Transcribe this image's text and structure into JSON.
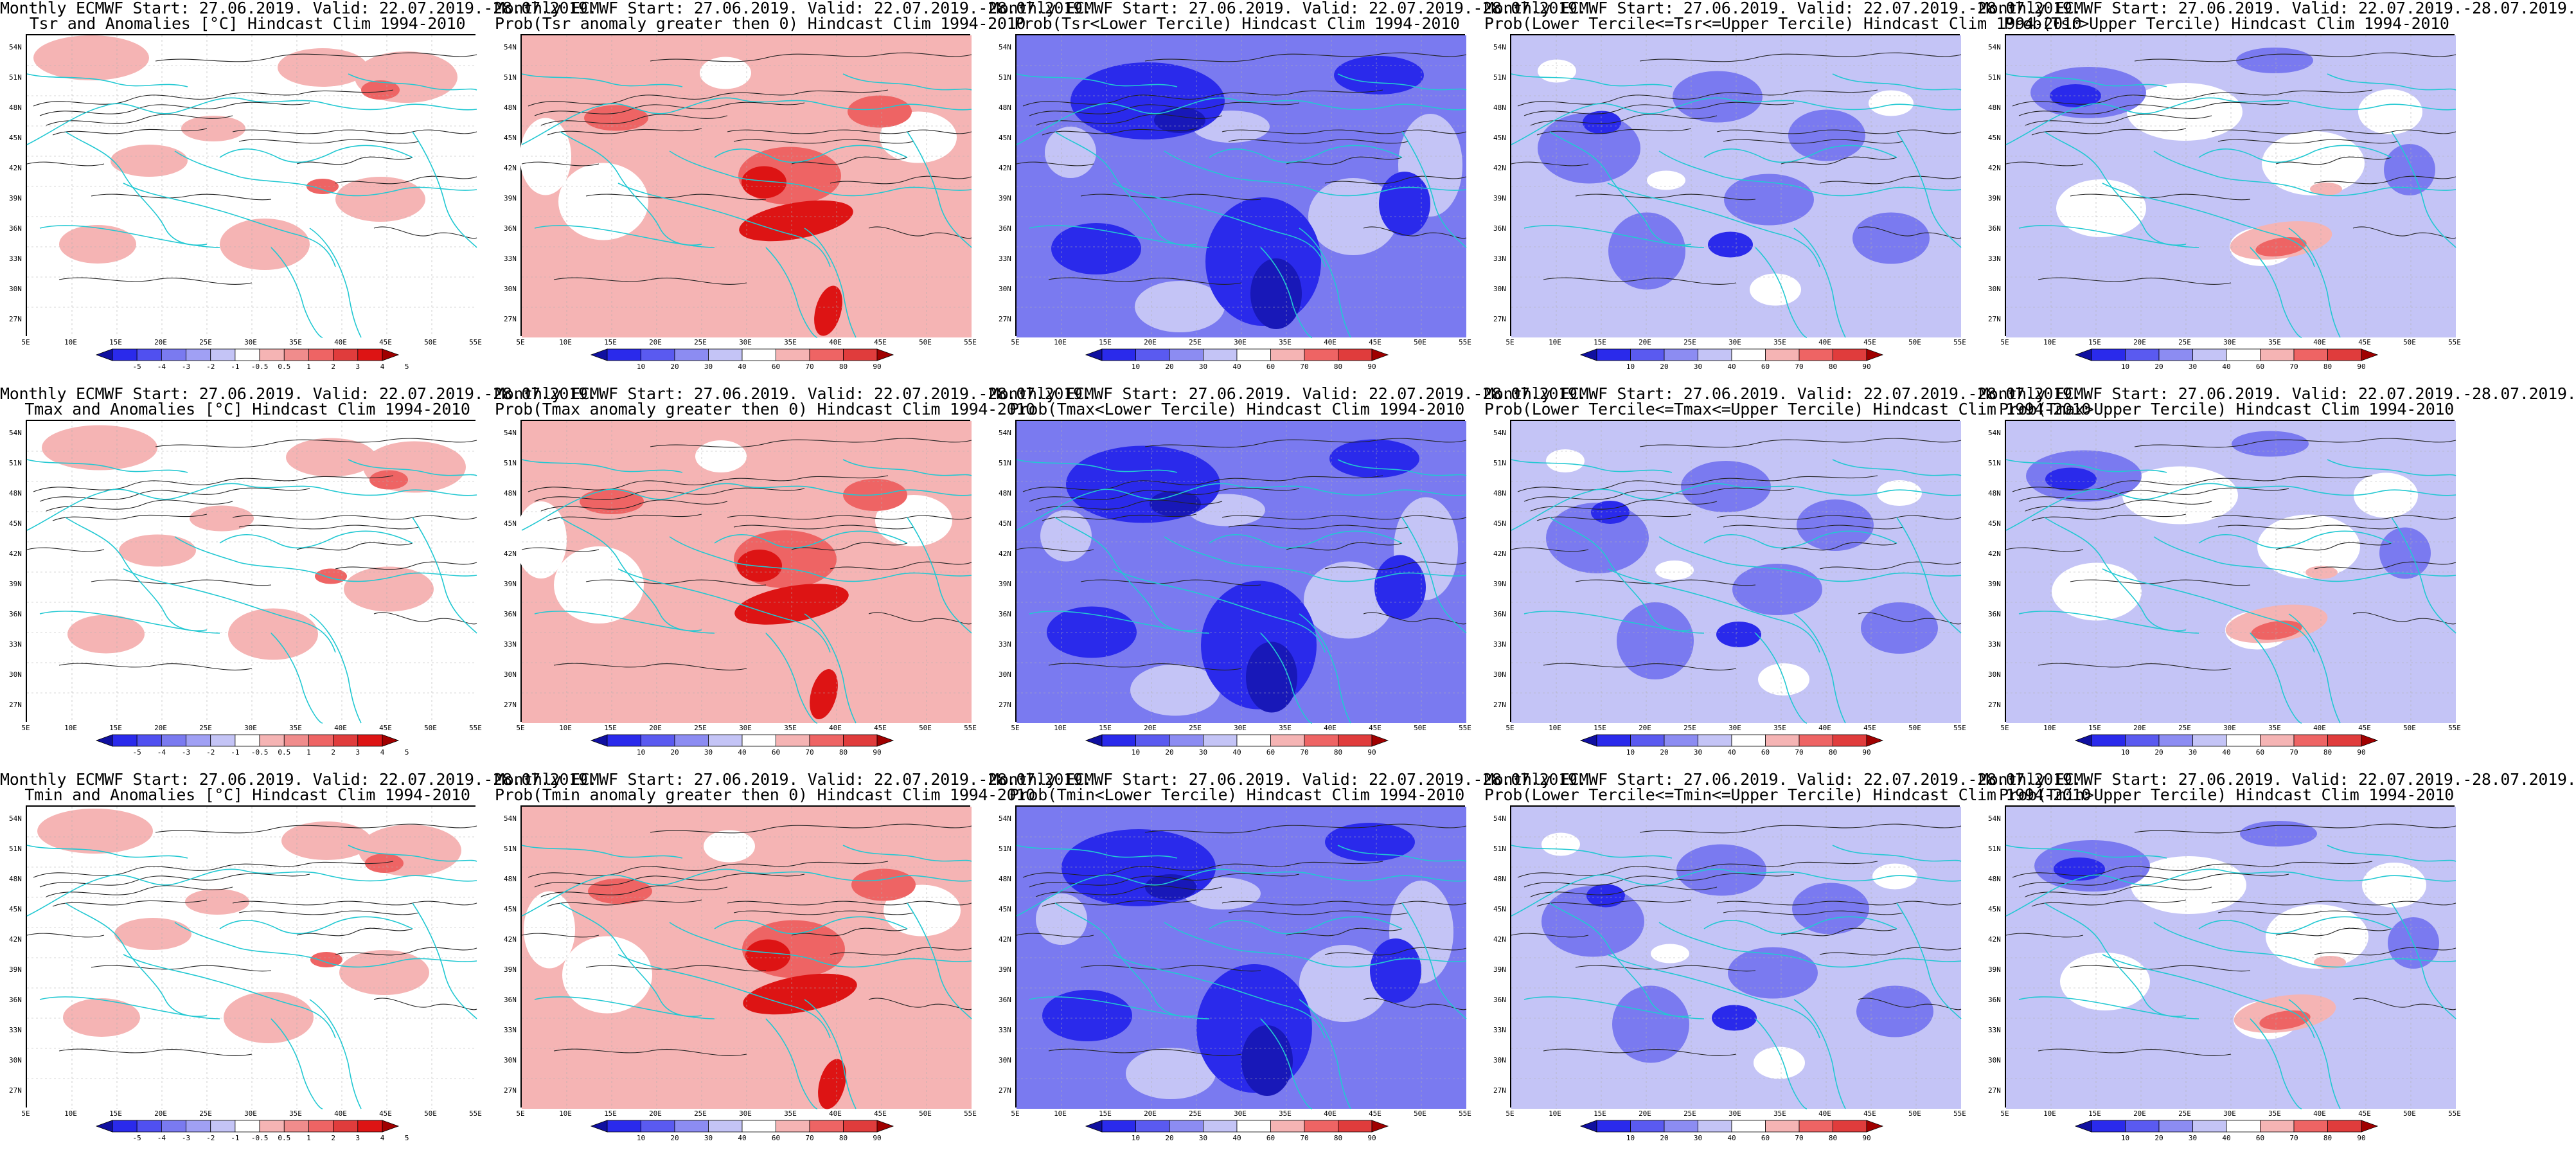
{
  "line1": "Monthly ECMWF Start: 27.06.2019. Valid: 22.07.2019.-28.07.2019.",
  "lat_labels": [
    "54N",
    "51N",
    "48N",
    "45N",
    "42N",
    "39N",
    "36N",
    "33N",
    "30N",
    "27N"
  ],
  "lon_labels": [
    "5E",
    "10E",
    "15E",
    "20E",
    "25E",
    "30E",
    "35E",
    "40E",
    "45E",
    "50E",
    "55E"
  ],
  "anom_labels": [
    "-5",
    "-4",
    "-3",
    "-2",
    "-1",
    "-0.5",
    "0.5",
    "1",
    "2",
    "3",
    "4",
    "5"
  ],
  "prob_labels": [
    "10",
    "20",
    "30",
    "40",
    "60",
    "70",
    "80",
    "90"
  ],
  "colors": {
    "deep_blue": "#2a2aeb",
    "mid_blue": "#7a7af0",
    "light_blue": "#c4c4f6",
    "light_red": "#f5b4b4",
    "mid_red": "#ee6464",
    "deep_red": "#dd1414",
    "coast": "#22c8d2",
    "contour": "#222222"
  },
  "panels": [
    {
      "title": "Tsr and Anomalies [°C] Hindcast Clim 1994-2010",
      "kind": "anom"
    },
    {
      "title": "Prob(Tsr anomaly greater then 0) Hindcast Clim 1994-2010",
      "kind": "probgt0"
    },
    {
      "title": "Prob(Tsr<Lower Tercile) Hindcast Clim 1994-2010",
      "kind": "lower"
    },
    {
      "title": "Prob(Lower Tercile<=Tsr<=Upper Tercile) Hindcast Clim 1994-2010",
      "kind": "middle"
    },
    {
      "title": "Prob(Tsr>Upper Tercile) Hindcast Clim 1994-2010",
      "kind": "upper"
    },
    {
      "title": "Tmax and Anomalies [°C] Hindcast Clim 1994-2010",
      "kind": "anom"
    },
    {
      "title": "Prob(Tmax anomaly greater then 0) Hindcast Clim 1994-2010",
      "kind": "probgt0"
    },
    {
      "title": "Prob(Tmax<Lower Tercile) Hindcast Clim 1994-2010",
      "kind": "lower"
    },
    {
      "title": "Prob(Lower Tercile<=Tmax<=Upper Tercile) Hindcast Clim 1994-2010",
      "kind": "middle"
    },
    {
      "title": "Prob(Tmax>Upper Tercile) Hindcast Clim 1994-2010",
      "kind": "upper"
    },
    {
      "title": "Tmin and Anomalies [°C] Hindcast Clim 1994-2010",
      "kind": "anom"
    },
    {
      "title": "Prob(Tmin anomaly greater then 0) Hindcast Clim 1994-2010",
      "kind": "probgt0"
    },
    {
      "title": "Prob(Tmin<Lower Tercile) Hindcast Clim 1994-2010",
      "kind": "lower"
    },
    {
      "title": "Prob(Lower Tercile<=Tmin<=Upper Tercile) Hindcast Clim 1994-2010",
      "kind": "middle"
    },
    {
      "title": "Prob(Tmin>Upper Tercile) Hindcast Clim 1994-2010",
      "kind": "upper"
    }
  ]
}
